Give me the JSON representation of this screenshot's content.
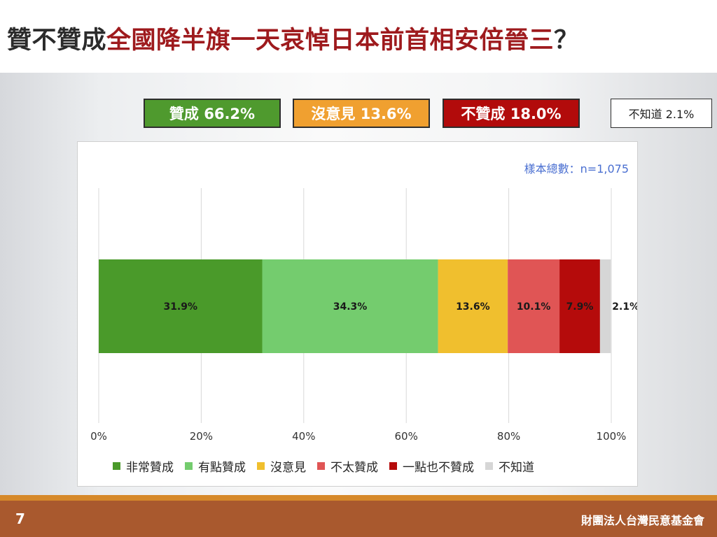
{
  "title": {
    "lead": "贊不贊成",
    "highlight": "全國降半旗一天哀悼日本前首相安倍晉三",
    "tail": "？"
  },
  "summary": {
    "agree": "贊成 66.2%",
    "neutral": "沒意見 13.6%",
    "disagree": "不贊成 18.0%",
    "unknown": "不知道 2.1%"
  },
  "sample_note": "樣本總數：n=1,075",
  "footer": {
    "page_number": "7",
    "organization": "財團法人台灣民意基金會"
  },
  "chart_data": {
    "type": "bar",
    "orientation": "horizontal",
    "stacked": true,
    "categories": [
      ""
    ],
    "series": [
      {
        "name": "非常贊成",
        "values": [
          31.9
        ],
        "label": "31.9%",
        "color": "#4a9a2a"
      },
      {
        "name": "有點贊成",
        "values": [
          34.3
        ],
        "label": "34.3%",
        "color": "#74cc6e"
      },
      {
        "name": "沒意見",
        "values": [
          13.6
        ],
        "label": "13.6%",
        "color": "#f0bf2e"
      },
      {
        "name": "不太贊成",
        "values": [
          10.1
        ],
        "label": "10.1%",
        "color": "#e05555"
      },
      {
        "name": "一點也不贊成",
        "values": [
          7.9
        ],
        "label": "7.9%",
        "color": "#b50b0b"
      },
      {
        "name": "不知道",
        "values": [
          2.1
        ],
        "label": "2.1%",
        "color": "#d6d6d6"
      }
    ],
    "xlim": [
      0,
      100
    ],
    "xticks": [
      "0%",
      "20%",
      "40%",
      "60%",
      "80%",
      "100%"
    ],
    "grid": true,
    "legend": "bottom"
  }
}
